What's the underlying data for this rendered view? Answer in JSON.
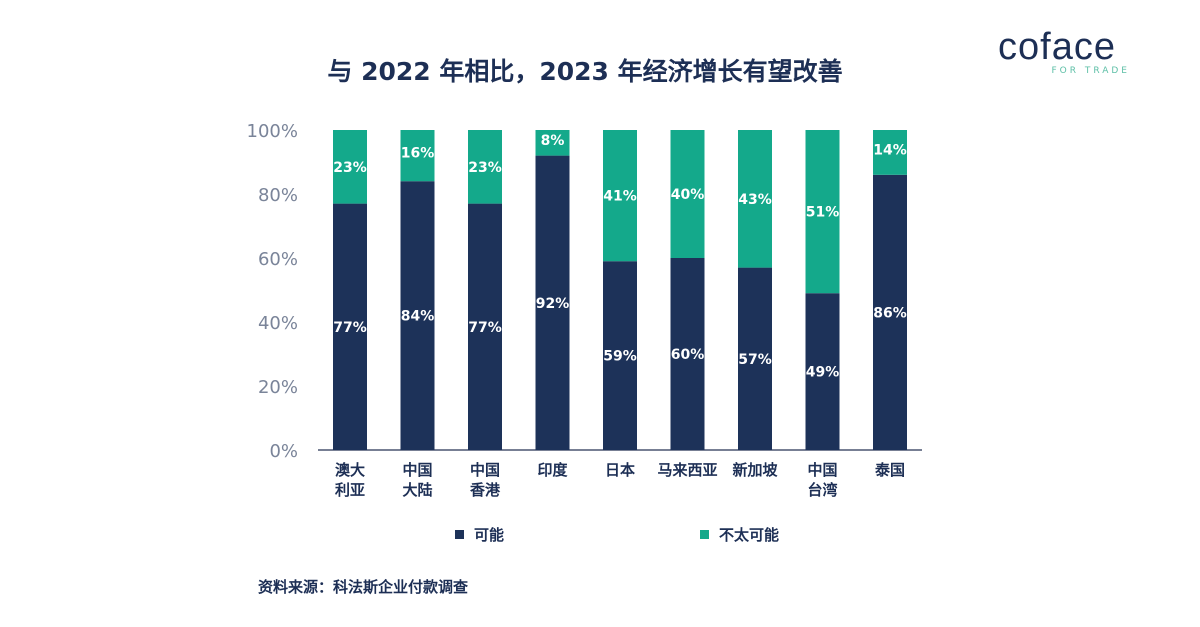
{
  "title": "与 2022 年相比，2023 年经济增长有望改善",
  "logo": {
    "main": "coface",
    "sub": "FOR TRADE"
  },
  "source": "资料来源：科法斯企业付款调查",
  "chart_data": {
    "type": "bar",
    "stacked": true,
    "categories": [
      [
        "澳大",
        "利亚"
      ],
      [
        "中国",
        "大陆"
      ],
      [
        "中国",
        "香港"
      ],
      [
        "印度"
      ],
      [
        "日本"
      ],
      [
        "马来西亚"
      ],
      [
        "新加坡"
      ],
      [
        "中国",
        "台湾"
      ],
      [
        "泰国"
      ]
    ],
    "series": [
      {
        "name": "可能",
        "color": "#1d3259",
        "values": [
          77,
          84,
          77,
          92,
          59,
          60,
          57,
          49,
          86
        ]
      },
      {
        "name": "不太可能",
        "color": "#14a98b",
        "values": [
          23,
          16,
          23,
          8,
          41,
          40,
          43,
          51,
          14
        ]
      }
    ],
    "ylim": [
      0,
      100
    ],
    "yticks": [
      "0%",
      "20%",
      "40%",
      "60%",
      "80%",
      "100%"
    ],
    "legend": "bottom",
    "grid": false
  }
}
